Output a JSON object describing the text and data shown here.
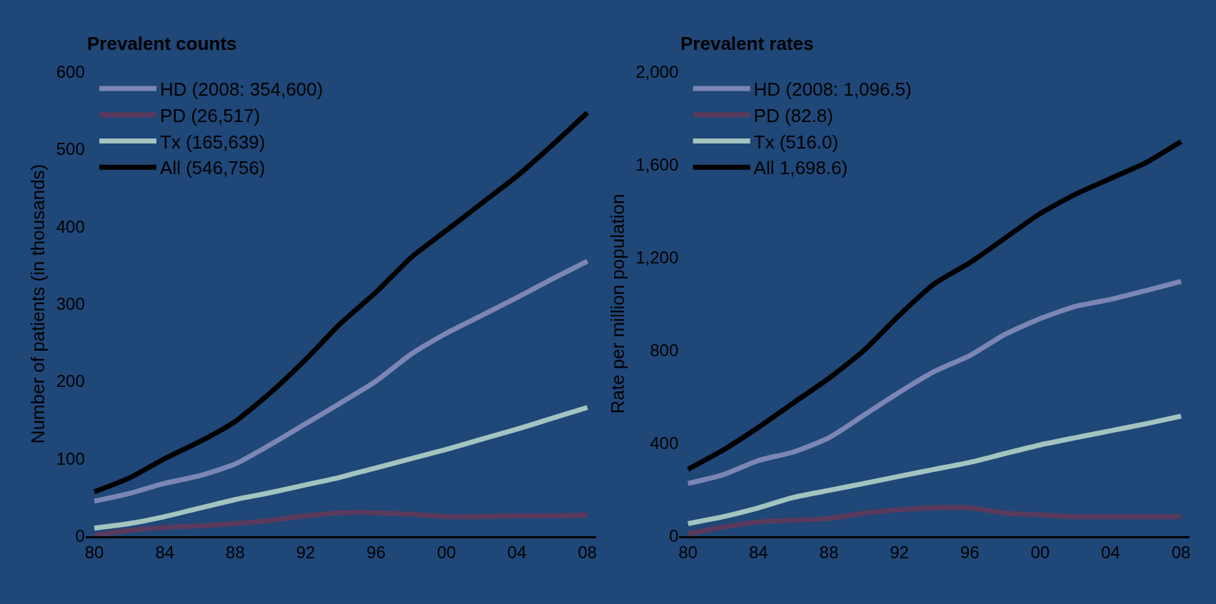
{
  "chart_data": [
    {
      "type": "line",
      "title": "Prevalent counts",
      "ylabel": "Number of patients (in thousands)",
      "x": [
        1980,
        1982,
        1984,
        1986,
        1988,
        1990,
        1992,
        1994,
        1996,
        1998,
        2000,
        2002,
        2004,
        2006,
        2008
      ],
      "xlim": [
        1979.5,
        2008.5
      ],
      "xticks": [
        {
          "value": 1980,
          "label": "80"
        },
        {
          "value": 1984,
          "label": "84"
        },
        {
          "value": 1988,
          "label": "88"
        },
        {
          "value": 1992,
          "label": "92"
        },
        {
          "value": 1996,
          "label": "96"
        },
        {
          "value": 2000,
          "label": "00"
        },
        {
          "value": 2004,
          "label": "04"
        },
        {
          "value": 2008,
          "label": "08"
        }
      ],
      "ylim": [
        0,
        600
      ],
      "yticks": [
        0,
        100,
        200,
        300,
        400,
        500,
        600
      ],
      "grid": false,
      "legend": "top left",
      "marker": "none",
      "line_style": "solid",
      "series": [
        {
          "name": "HD (2008: 354,600)",
          "color": "#7b86b5",
          "values": [
            45,
            55,
            68,
            78,
            93,
            118,
            145,
            172,
            200,
            235,
            262,
            285,
            308,
            332,
            355
          ]
        },
        {
          "name": "PD (26,517)",
          "color": "#5a3a5c",
          "values": [
            1,
            7,
            11,
            13,
            16,
            20,
            26,
            30,
            30,
            28,
            25,
            25,
            26,
            26,
            27
          ]
        },
        {
          "name": "Tx (165,639)",
          "color": "#a3c4bf",
          "values": [
            10,
            16,
            25,
            36,
            47,
            56,
            66,
            76,
            88,
            100,
            112,
            125,
            138,
            152,
            166
          ]
        },
        {
          "name": "All (546,756)",
          "color": "#000000",
          "values": [
            57,
            75,
            100,
            122,
            148,
            185,
            228,
            275,
            315,
            360,
            395,
            430,
            465,
            505,
            547
          ]
        }
      ]
    },
    {
      "type": "line",
      "title": "Prevalent rates",
      "ylabel": "Rate per million population",
      "x": [
        1980,
        1982,
        1984,
        1986,
        1988,
        1990,
        1992,
        1994,
        1996,
        1998,
        2000,
        2002,
        2004,
        2006,
        2008
      ],
      "xlim": [
        1979.5,
        2008.5
      ],
      "xticks": [
        {
          "value": 1980,
          "label": "80"
        },
        {
          "value": 1984,
          "label": "84"
        },
        {
          "value": 1988,
          "label": "88"
        },
        {
          "value": 1992,
          "label": "92"
        },
        {
          "value": 1996,
          "label": "96"
        },
        {
          "value": 2000,
          "label": "00"
        },
        {
          "value": 2004,
          "label": "04"
        },
        {
          "value": 2008,
          "label": "08"
        }
      ],
      "ylim": [
        0,
        2000
      ],
      "yticks": [
        0,
        400,
        800,
        {
          "value": 1200,
          "label": "1,200"
        },
        {
          "value": 1600,
          "label": "1,600"
        },
        {
          "value": 2000,
          "label": "2,000"
        }
      ],
      "grid": false,
      "legend": "top left",
      "marker": "none",
      "line_style": "solid",
      "series": [
        {
          "name": "HD (2008: 1,096.5)",
          "color": "#7b86b5",
          "values": [
            226,
            264,
            325,
            362,
            423,
            521,
            619,
            709,
            777,
            868,
            936,
            989,
            1019,
            1057,
            1097
          ]
        },
        {
          "name": "PD (82.8)",
          "color": "#5a3a5c",
          "values": [
            8,
            38,
            60,
            68,
            75,
            98,
            113,
            121,
            121,
            98,
            91,
            83,
            83,
            83,
            83
          ]
        },
        {
          "name": "Tx (516.0)",
          "color": "#a3c4bf",
          "values": [
            53,
            83,
            121,
            166,
            196,
            226,
            257,
            287,
            317,
            355,
            392,
            423,
            453,
            483,
            516
          ]
        },
        {
          "name": "All 1,698.6)",
          "color": "#000000",
          "values": [
            287,
            370,
            468,
            574,
            679,
            800,
            951,
            1087,
            1177,
            1283,
            1389,
            1472,
            1540,
            1608,
            1699
          ]
        }
      ]
    }
  ]
}
